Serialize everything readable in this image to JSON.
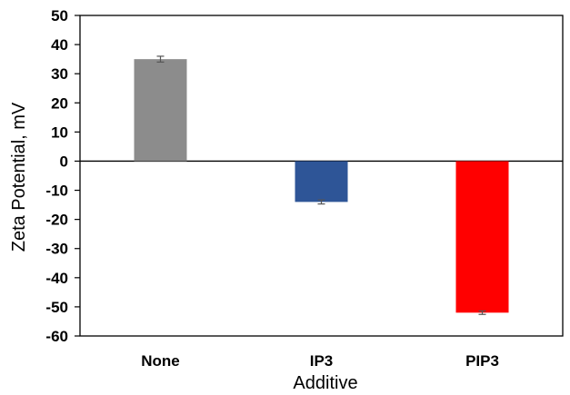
{
  "chart_data": {
    "type": "bar",
    "categories": [
      "None",
      "IP3",
      "PIP3"
    ],
    "values": [
      35,
      -14,
      -52
    ],
    "error": [
      1,
      0.7,
      0.6
    ],
    "colors": [
      "#8c8c8c",
      "#2e5597",
      "#ff0000"
    ],
    "xlabel": "Additive",
    "ylabel": "Zeta Potential, mV",
    "ylim": [
      -60,
      50
    ],
    "yticks": [
      50,
      40,
      30,
      20,
      10,
      0,
      -10,
      -20,
      -30,
      -40,
      -50,
      -60
    ],
    "grid": false,
    "legend": "none"
  }
}
